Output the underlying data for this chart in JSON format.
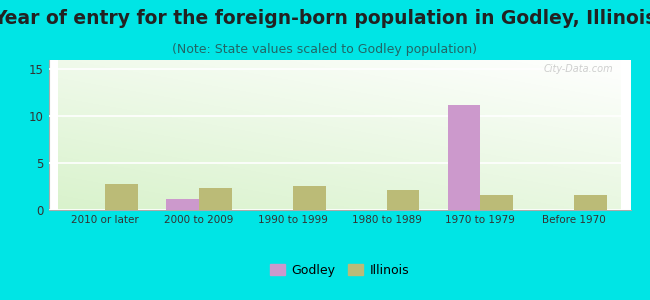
{
  "title": "Year of entry for the foreign-born population in Godley, Illinois",
  "subtitle": "(Note: State values scaled to Godley population)",
  "categories": [
    "2010 or later",
    "2000 to 2009",
    "1990 to 1999",
    "1980 to 1989",
    "1970 to 1979",
    "Before 1970"
  ],
  "godley_values": [
    0,
    1.2,
    0,
    0,
    11.2,
    0
  ],
  "illinois_values": [
    2.8,
    2.4,
    2.6,
    2.1,
    1.6,
    1.6
  ],
  "godley_color": "#cc99cc",
  "illinois_color": "#bbbb77",
  "ylim": [
    0,
    16
  ],
  "yticks": [
    0,
    5,
    10,
    15
  ],
  "background_color": "#00e5e5",
  "bar_width": 0.35,
  "title_fontsize": 13.5,
  "subtitle_fontsize": 9,
  "legend_godley": "Godley",
  "legend_illinois": "Illinois"
}
